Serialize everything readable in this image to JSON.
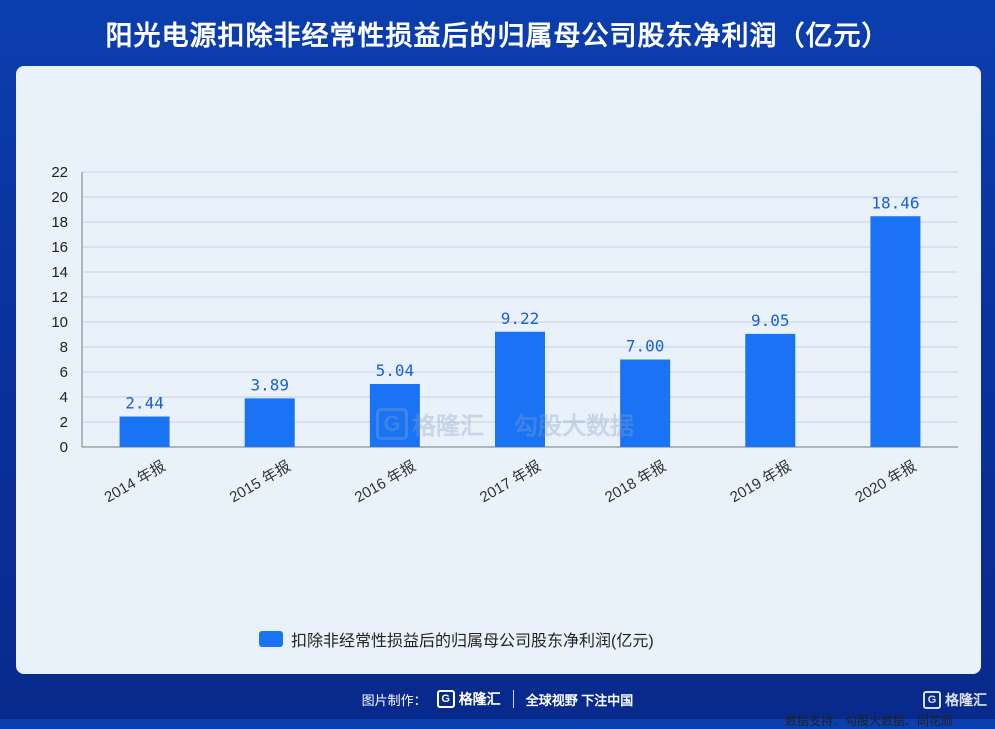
{
  "title": "阳光电源扣除非经常性损益后的归属母公司股东净利润（亿元）",
  "chart_data": {
    "type": "bar",
    "categories": [
      "2014 年报",
      "2015 年报",
      "2016 年报",
      "2017 年报",
      "2018 年报",
      "2019 年报",
      "2020 年报"
    ],
    "series": [
      {
        "name": "扣除非经常性损益后的归属母公司股东净利润(亿元)",
        "values": [
          2.44,
          3.89,
          5.04,
          9.22,
          7.0,
          9.05,
          18.46
        ],
        "labels": [
          "2.44",
          "3.89",
          "5.04",
          "9.22",
          "7.00",
          "9.05",
          "18.46"
        ],
        "color": "#1a73f5"
      }
    ],
    "ylim": [
      0,
      22
    ],
    "yticks": [
      0,
      2,
      4,
      6,
      8,
      10,
      12,
      14,
      16,
      18,
      20,
      22
    ],
    "grid": true,
    "legend_position": "bottom"
  },
  "source_text": "数据支持：勾股大数据、同花顺",
  "watermark": {
    "brand": "格隆汇",
    "brand_letter": "G",
    "partner": "勾股大数据"
  },
  "footer": {
    "made_by": "图片制作：",
    "brand": "格隆汇",
    "brand_letter": "G",
    "slogan": "全球视野 下注中国"
  },
  "corner_brand": "格隆汇",
  "corner_letter": "G"
}
